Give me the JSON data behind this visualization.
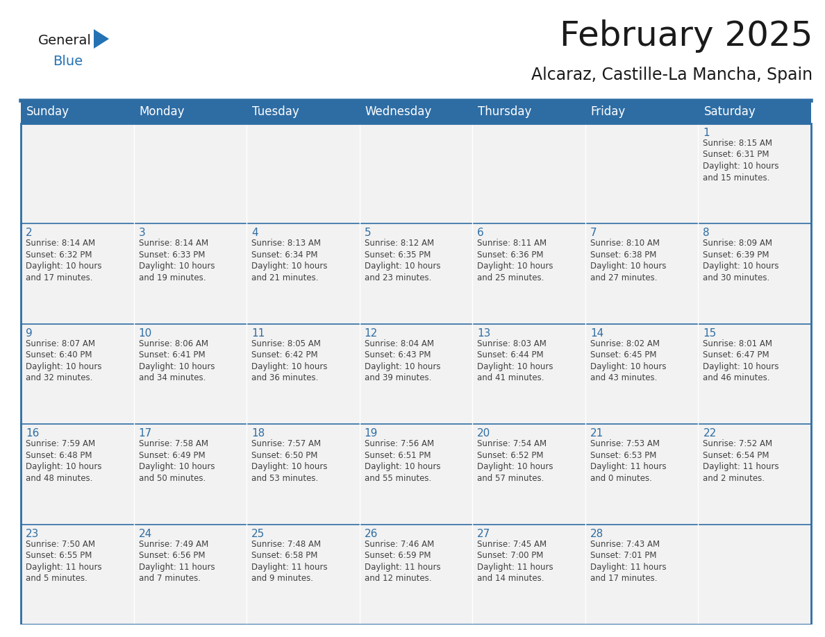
{
  "title": "February 2025",
  "subtitle": "Alcaraz, Castille-La Mancha, Spain",
  "header_color": "#2E6DA4",
  "header_text_color": "#FFFFFF",
  "cell_bg_color": "#F2F2F2",
  "cell_bg_empty": "#FFFFFF",
  "border_color": "#2E6DA4",
  "row_line_color": "#2E6DA4",
  "text_color": "#404040",
  "day_num_color": "#2E6DA4",
  "days_of_week": [
    "Sunday",
    "Monday",
    "Tuesday",
    "Wednesday",
    "Thursday",
    "Friday",
    "Saturday"
  ],
  "weeks": [
    [
      {
        "day": "",
        "info": ""
      },
      {
        "day": "",
        "info": ""
      },
      {
        "day": "",
        "info": ""
      },
      {
        "day": "",
        "info": ""
      },
      {
        "day": "",
        "info": ""
      },
      {
        "day": "",
        "info": ""
      },
      {
        "day": "1",
        "info": "Sunrise: 8:15 AM\nSunset: 6:31 PM\nDaylight: 10 hours\nand 15 minutes."
      }
    ],
    [
      {
        "day": "2",
        "info": "Sunrise: 8:14 AM\nSunset: 6:32 PM\nDaylight: 10 hours\nand 17 minutes."
      },
      {
        "day": "3",
        "info": "Sunrise: 8:14 AM\nSunset: 6:33 PM\nDaylight: 10 hours\nand 19 minutes."
      },
      {
        "day": "4",
        "info": "Sunrise: 8:13 AM\nSunset: 6:34 PM\nDaylight: 10 hours\nand 21 minutes."
      },
      {
        "day": "5",
        "info": "Sunrise: 8:12 AM\nSunset: 6:35 PM\nDaylight: 10 hours\nand 23 minutes."
      },
      {
        "day": "6",
        "info": "Sunrise: 8:11 AM\nSunset: 6:36 PM\nDaylight: 10 hours\nand 25 minutes."
      },
      {
        "day": "7",
        "info": "Sunrise: 8:10 AM\nSunset: 6:38 PM\nDaylight: 10 hours\nand 27 minutes."
      },
      {
        "day": "8",
        "info": "Sunrise: 8:09 AM\nSunset: 6:39 PM\nDaylight: 10 hours\nand 30 minutes."
      }
    ],
    [
      {
        "day": "9",
        "info": "Sunrise: 8:07 AM\nSunset: 6:40 PM\nDaylight: 10 hours\nand 32 minutes."
      },
      {
        "day": "10",
        "info": "Sunrise: 8:06 AM\nSunset: 6:41 PM\nDaylight: 10 hours\nand 34 minutes."
      },
      {
        "day": "11",
        "info": "Sunrise: 8:05 AM\nSunset: 6:42 PM\nDaylight: 10 hours\nand 36 minutes."
      },
      {
        "day": "12",
        "info": "Sunrise: 8:04 AM\nSunset: 6:43 PM\nDaylight: 10 hours\nand 39 minutes."
      },
      {
        "day": "13",
        "info": "Sunrise: 8:03 AM\nSunset: 6:44 PM\nDaylight: 10 hours\nand 41 minutes."
      },
      {
        "day": "14",
        "info": "Sunrise: 8:02 AM\nSunset: 6:45 PM\nDaylight: 10 hours\nand 43 minutes."
      },
      {
        "day": "15",
        "info": "Sunrise: 8:01 AM\nSunset: 6:47 PM\nDaylight: 10 hours\nand 46 minutes."
      }
    ],
    [
      {
        "day": "16",
        "info": "Sunrise: 7:59 AM\nSunset: 6:48 PM\nDaylight: 10 hours\nand 48 minutes."
      },
      {
        "day": "17",
        "info": "Sunrise: 7:58 AM\nSunset: 6:49 PM\nDaylight: 10 hours\nand 50 minutes."
      },
      {
        "day": "18",
        "info": "Sunrise: 7:57 AM\nSunset: 6:50 PM\nDaylight: 10 hours\nand 53 minutes."
      },
      {
        "day": "19",
        "info": "Sunrise: 7:56 AM\nSunset: 6:51 PM\nDaylight: 10 hours\nand 55 minutes."
      },
      {
        "day": "20",
        "info": "Sunrise: 7:54 AM\nSunset: 6:52 PM\nDaylight: 10 hours\nand 57 minutes."
      },
      {
        "day": "21",
        "info": "Sunrise: 7:53 AM\nSunset: 6:53 PM\nDaylight: 11 hours\nand 0 minutes."
      },
      {
        "day": "22",
        "info": "Sunrise: 7:52 AM\nSunset: 6:54 PM\nDaylight: 11 hours\nand 2 minutes."
      }
    ],
    [
      {
        "day": "23",
        "info": "Sunrise: 7:50 AM\nSunset: 6:55 PM\nDaylight: 11 hours\nand 5 minutes."
      },
      {
        "day": "24",
        "info": "Sunrise: 7:49 AM\nSunset: 6:56 PM\nDaylight: 11 hours\nand 7 minutes."
      },
      {
        "day": "25",
        "info": "Sunrise: 7:48 AM\nSunset: 6:58 PM\nDaylight: 11 hours\nand 9 minutes."
      },
      {
        "day": "26",
        "info": "Sunrise: 7:46 AM\nSunset: 6:59 PM\nDaylight: 11 hours\nand 12 minutes."
      },
      {
        "day": "27",
        "info": "Sunrise: 7:45 AM\nSunset: 7:00 PM\nDaylight: 11 hours\nand 14 minutes."
      },
      {
        "day": "28",
        "info": "Sunrise: 7:43 AM\nSunset: 7:01 PM\nDaylight: 11 hours\nand 17 minutes."
      },
      {
        "day": "",
        "info": ""
      }
    ]
  ],
  "logo_text_general": "General",
  "logo_text_blue": "Blue",
  "logo_color_general": "#1a1a1a",
  "logo_color_blue": "#2472B3",
  "logo_triangle_color": "#2472B3",
  "title_fontsize": 36,
  "subtitle_fontsize": 17,
  "header_fontsize": 12,
  "day_num_fontsize": 11,
  "info_fontsize": 8.5,
  "logo_fontsize": 14
}
